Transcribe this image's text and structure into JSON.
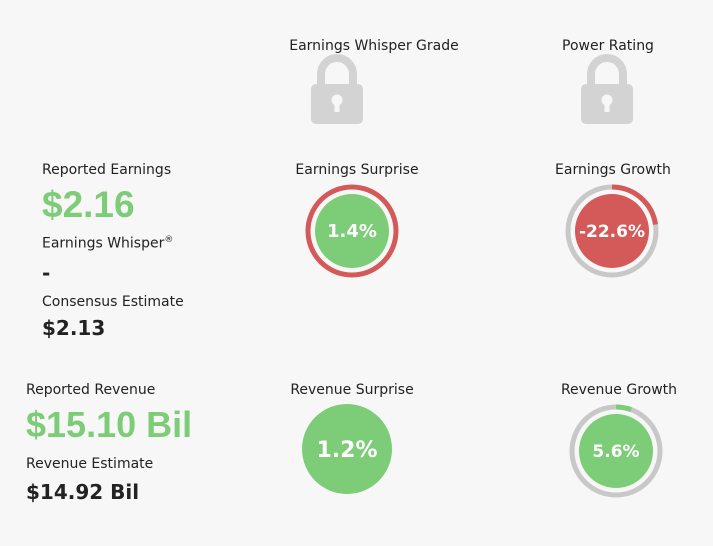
{
  "grades": {
    "whisper_grade_label": "Earnings Whisper Grade",
    "power_rating_label": "Power Rating"
  },
  "earnings": {
    "reported_label": "Reported Earnings",
    "reported_value": "$2.16",
    "whisper_label": "Earnings Whisper",
    "whisper_mark": "®",
    "whisper_value": "-",
    "consensus_label": "Consensus Estimate",
    "consensus_value": "$2.13",
    "surprise_label": "Earnings Surprise",
    "surprise_value": "1.4%",
    "surprise_pct": 1.4,
    "growth_label": "Earnings Growth",
    "growth_value": "-22.6%",
    "growth_pct": -22.6
  },
  "revenue": {
    "reported_label": "Reported Revenue",
    "reported_value": "$15.10 Bil",
    "estimate_label": "Revenue Estimate",
    "estimate_value": "$14.92 Bil",
    "surprise_label": "Revenue Surprise",
    "surprise_value": "1.2%",
    "surprise_pct": 1.2,
    "growth_label": "Revenue Growth",
    "growth_value": "5.6%",
    "growth_pct": 5.6
  },
  "colors": {
    "green": "#7dcc77",
    "red": "#d45a5a",
    "gray": "#c8c8c8",
    "lock": "#d3d3d3"
  },
  "icons": {
    "whisper_grade_lock": "lock-icon",
    "power_rating_lock": "lock-icon"
  }
}
